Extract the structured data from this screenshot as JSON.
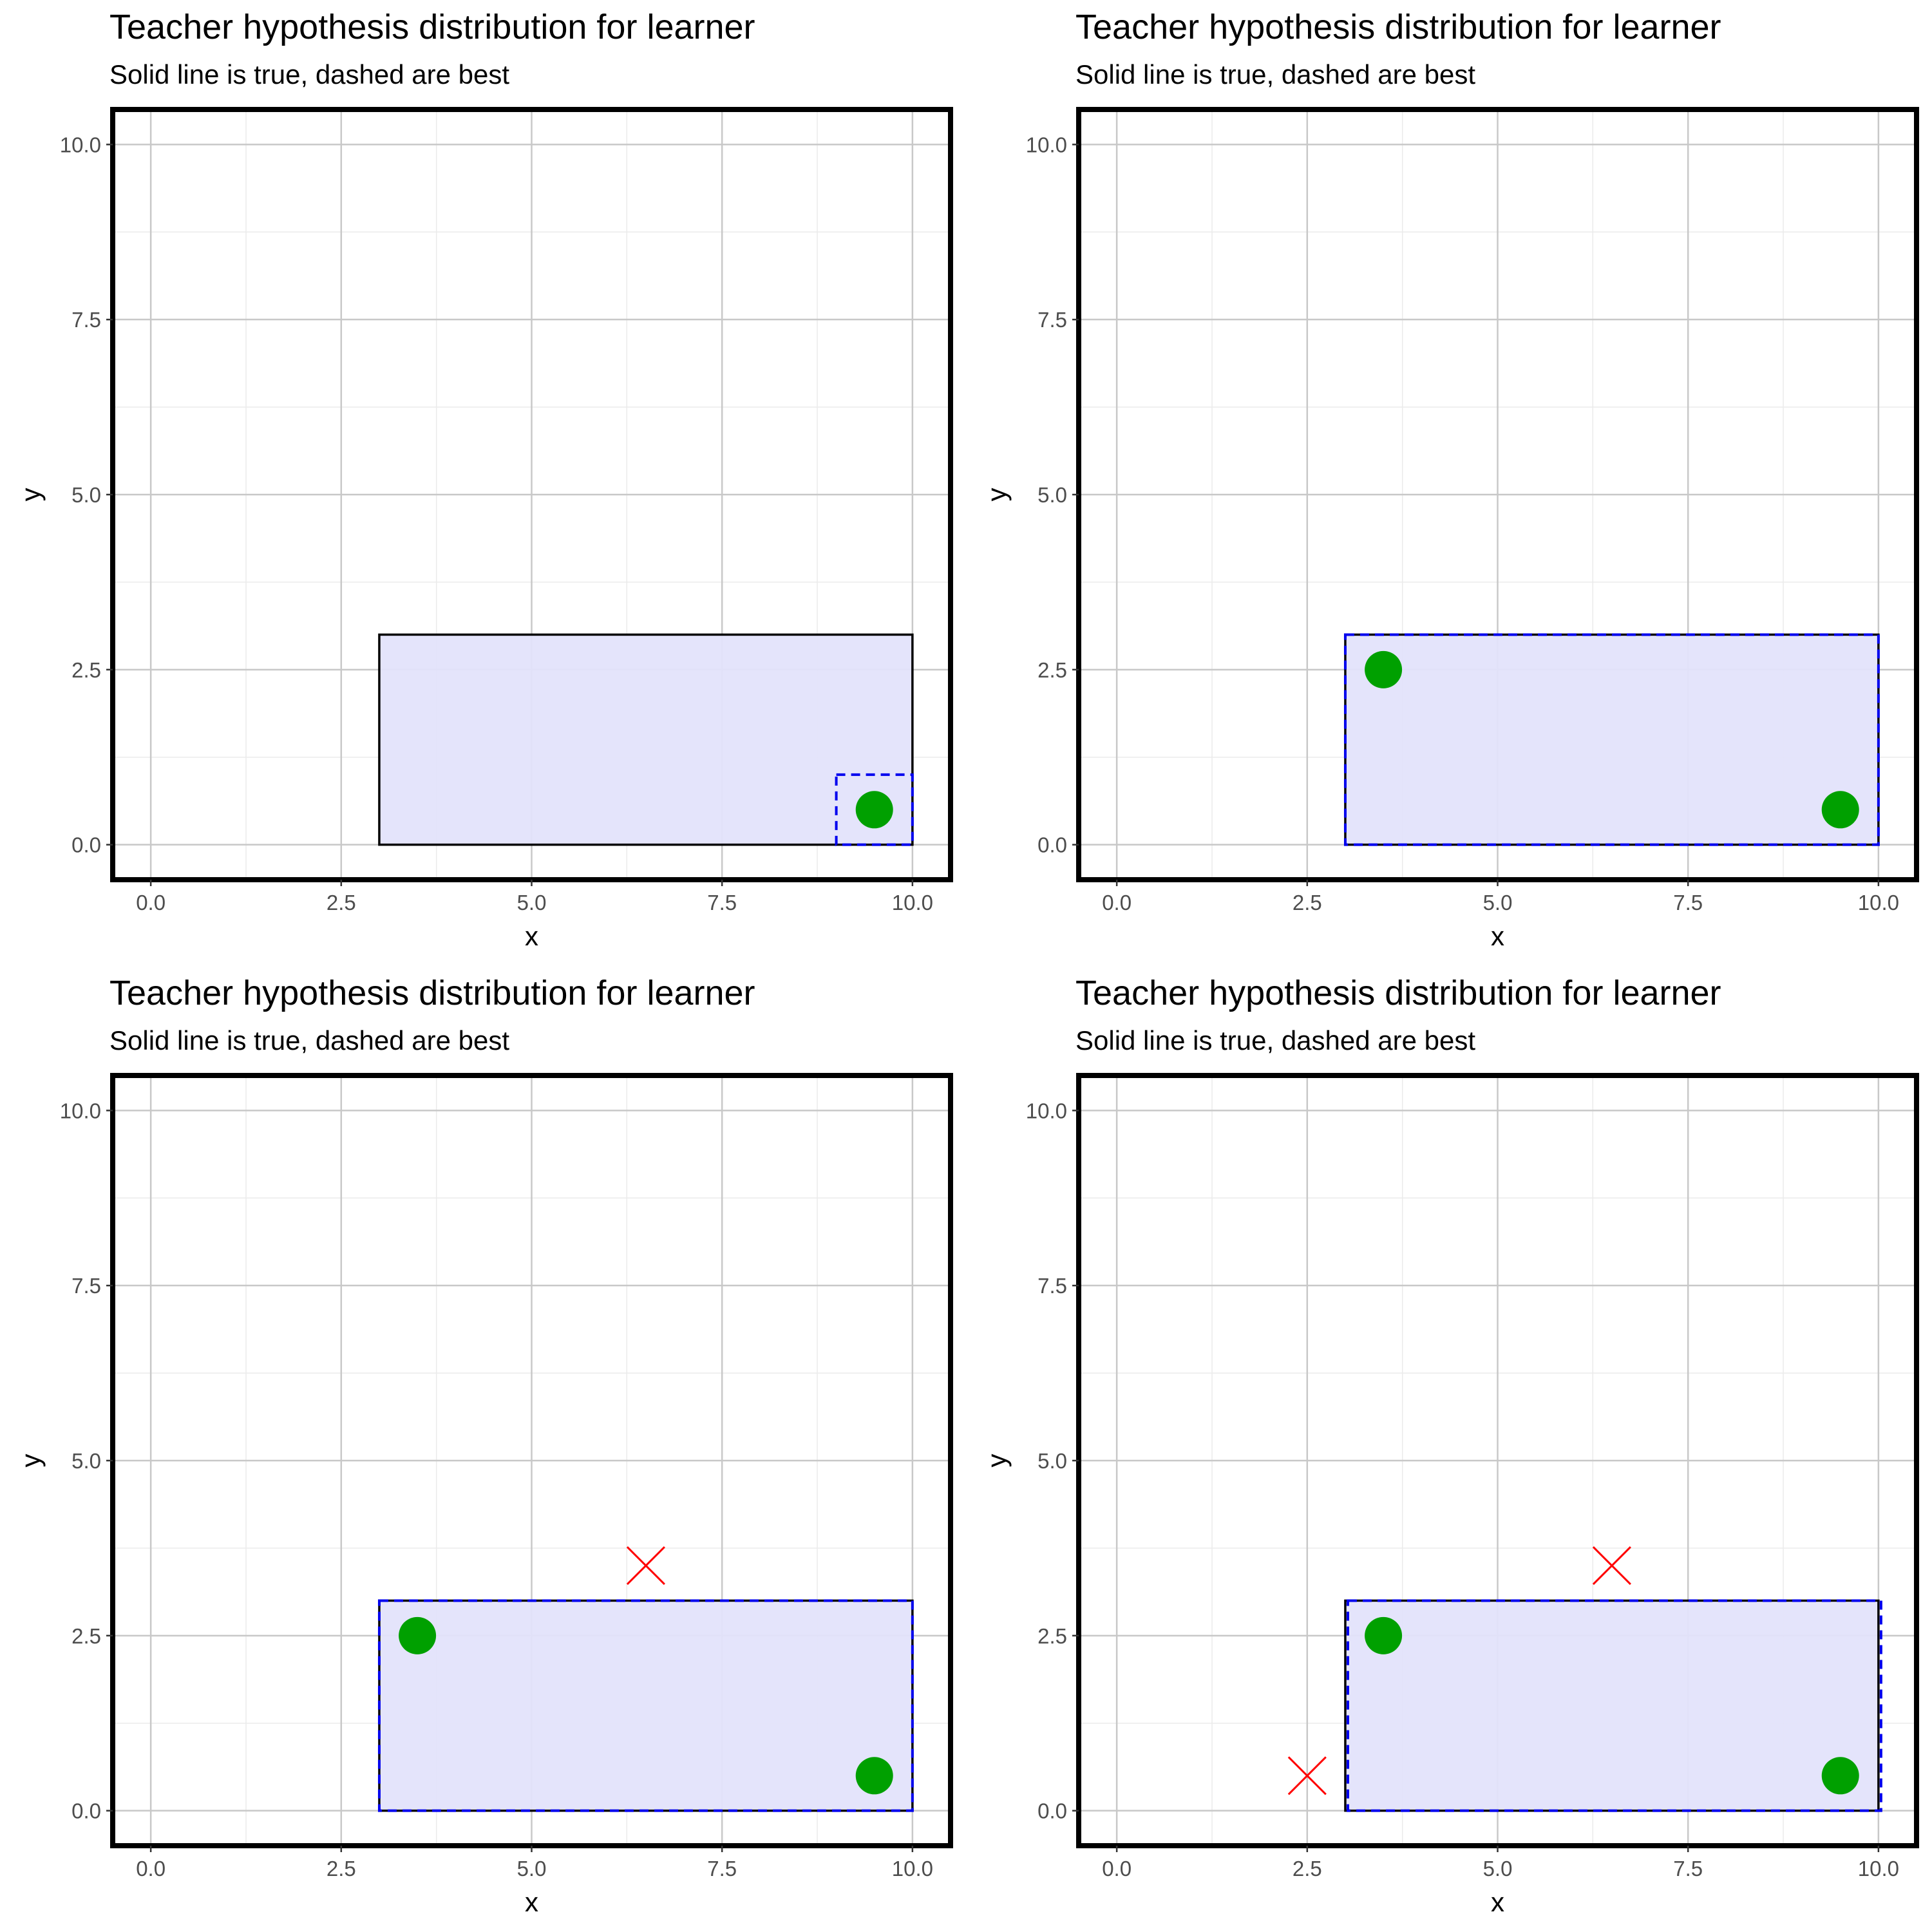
{
  "chart_data": [
    {
      "type": "scatter",
      "title": "Teacher hypothesis distribution for learner",
      "subtitle": "Solid line is true, dashed are best",
      "xlabel": "x",
      "ylabel": "y",
      "xlim": [
        -0.5,
        10.5
      ],
      "ylim": [
        -0.5,
        10.5
      ],
      "x_ticks": [
        "0.0",
        "2.5",
        "5.0",
        "7.5",
        "10.0"
      ],
      "y_ticks": [
        "0.0",
        "2.5",
        "5.0",
        "7.5",
        "10.0"
      ],
      "grid": true,
      "true_rectangle": {
        "x_min": 3,
        "x_max": 10,
        "y_min": 0,
        "y_max": 3
      },
      "best_rectangles": [
        {
          "x_min": 9,
          "x_max": 10,
          "y_min": 0,
          "y_max": 1
        }
      ],
      "positive_points": [
        {
          "x": 9.5,
          "y": 0.5
        }
      ],
      "negative_points": []
    },
    {
      "type": "scatter",
      "title": "Teacher hypothesis distribution for learner",
      "subtitle": "Solid line is true, dashed are best",
      "xlabel": "x",
      "ylabel": "y",
      "xlim": [
        -0.5,
        10.5
      ],
      "ylim": [
        -0.5,
        10.5
      ],
      "x_ticks": [
        "0.0",
        "2.5",
        "5.0",
        "7.5",
        "10.0"
      ],
      "y_ticks": [
        "0.0",
        "2.5",
        "5.0",
        "7.5",
        "10.0"
      ],
      "grid": true,
      "true_rectangle": {
        "x_min": 3,
        "x_max": 10,
        "y_min": 0,
        "y_max": 3
      },
      "best_rectangles": [
        {
          "x_min": 3,
          "x_max": 10,
          "y_min": 0,
          "y_max": 3
        }
      ],
      "positive_points": [
        {
          "x": 3.5,
          "y": 2.5
        },
        {
          "x": 9.5,
          "y": 0.5
        }
      ],
      "negative_points": []
    },
    {
      "type": "scatter",
      "title": "Teacher hypothesis distribution for learner",
      "subtitle": "Solid line is true, dashed are best",
      "xlabel": "x",
      "ylabel": "y",
      "xlim": [
        -0.5,
        10.5
      ],
      "ylim": [
        -0.5,
        10.5
      ],
      "x_ticks": [
        "0.0",
        "2.5",
        "5.0",
        "7.5",
        "10.0"
      ],
      "y_ticks": [
        "0.0",
        "2.5",
        "5.0",
        "7.5",
        "10.0"
      ],
      "grid": true,
      "true_rectangle": {
        "x_min": 3,
        "x_max": 10,
        "y_min": 0,
        "y_max": 3
      },
      "best_rectangles": [
        {
          "x_min": 3,
          "x_max": 10,
          "y_min": 0,
          "y_max": 3
        }
      ],
      "positive_points": [
        {
          "x": 3.5,
          "y": 2.5
        },
        {
          "x": 9.5,
          "y": 0.5
        }
      ],
      "negative_points": [
        {
          "x": 6.5,
          "y": 3.5
        }
      ]
    },
    {
      "type": "scatter",
      "title": "Teacher hypothesis distribution for learner",
      "subtitle": "Solid line is true, dashed are best",
      "xlabel": "x",
      "ylabel": "y",
      "xlim": [
        -0.5,
        10.5
      ],
      "ylim": [
        -0.5,
        10.5
      ],
      "x_ticks": [
        "0.0",
        "2.5",
        "5.0",
        "7.5",
        "10.0"
      ],
      "y_ticks": [
        "0.0",
        "2.5",
        "5.0",
        "7.5",
        "10.0"
      ],
      "grid": true,
      "true_rectangle": {
        "x_min": 3,
        "x_max": 10,
        "y_min": 0,
        "y_max": 3
      },
      "best_rectangles": [
        {
          "x_min": 3,
          "x_max": 10,
          "y_min": 0,
          "y_max": 3
        }
      ],
      "positive_points": [
        {
          "x": 3.5,
          "y": 2.5
        },
        {
          "x": 9.5,
          "y": 0.5
        }
      ],
      "negative_points": [
        {
          "x": 6.5,
          "y": 3.5
        },
        {
          "x": 2.5,
          "y": 0.5
        }
      ]
    }
  ],
  "colors": {
    "rectangle_fill": "#e3e3fb",
    "true_outline": "#000000",
    "best_outline": "#0000ee",
    "positive_point": "#00a000",
    "negative_point": "#ff0000",
    "panel_border": "#000000",
    "major_grid": "#c8c8c8",
    "minor_grid": "#ebebeb",
    "tick_text": "#4d4d4d"
  },
  "icons": {
    "positive_marker": "filled-circle",
    "negative_marker": "x-cross"
  }
}
